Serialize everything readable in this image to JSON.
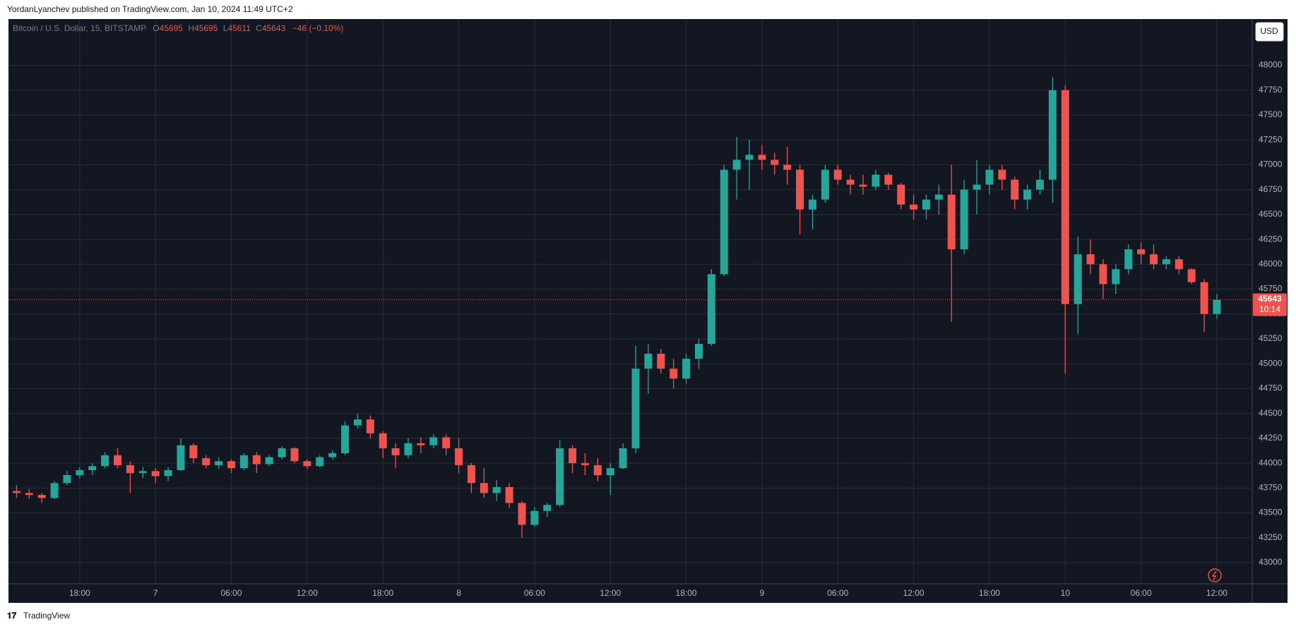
{
  "page": {
    "byline": "YordanLyanchev published on TradingView.com, Jan 10, 2024 11:49 UTC+2",
    "footer": "TradingView"
  },
  "legend": {
    "symbol": "Bitcoin / U.S. Dollar, 15, BITSTAMP",
    "o_label": "O",
    "o": "45695",
    "h_label": "H",
    "h": "45695",
    "l_label": "L",
    "l": "45611",
    "c_label": "C",
    "c": "45643",
    "change": "−46 (−0.10%)"
  },
  "chart_data": {
    "type": "candlestick",
    "currency": "USD",
    "categories": [
      null,
      null,
      null,
      null,
      null,
      "18:00",
      null,
      null,
      null,
      null,
      null,
      "7",
      null,
      null,
      null,
      null,
      null,
      "06:00",
      null,
      null,
      null,
      null,
      null,
      "12:00",
      null,
      null,
      null,
      null,
      null,
      "18:00",
      null,
      null,
      null,
      null,
      null,
      "8",
      null,
      null,
      null,
      null,
      null,
      "06:00",
      null,
      null,
      null,
      null,
      null,
      "12:00",
      null,
      null,
      null,
      null,
      null,
      "18:00",
      null,
      null,
      null,
      null,
      null,
      "9",
      null,
      null,
      null,
      null,
      null,
      "06:00",
      null,
      null,
      null,
      null,
      null,
      "12:00",
      null,
      null,
      null,
      null,
      null,
      "18:00",
      null,
      null,
      null,
      null,
      null,
      "10",
      null,
      null,
      null,
      null,
      null,
      "06:00",
      null,
      null,
      null,
      null,
      null,
      "12:00"
    ],
    "open": [
      43720,
      43700,
      43680,
      43650,
      43800,
      43880,
      43930,
      43970,
      44080,
      43980,
      43900,
      43920,
      43870,
      43930,
      44180,
      44050,
      43980,
      44020,
      43950,
      44080,
      43990,
      44060,
      44150,
      44020,
      43970,
      44060,
      44100,
      44380,
      44440,
      44300,
      44150,
      44080,
      44200,
      44180,
      44260,
      44150,
      43980,
      43800,
      43700,
      43760,
      43600,
      43380,
      43520,
      43580,
      44150,
      44000,
      43980,
      43880,
      43950,
      44150,
      44950,
      45100,
      44950,
      44850,
      45050,
      45200,
      45900,
      46950,
      47050,
      47100,
      47050,
      47000,
      46950,
      46550,
      46650,
      46950,
      46850,
      46800,
      46780,
      46900,
      46800,
      46600,
      46550,
      46650,
      46700,
      46150,
      46750,
      46800,
      46950,
      46850,
      46650,
      46750,
      46850,
      47750,
      45600,
      46100,
      46000,
      45800,
      45950,
      46150,
      46100,
      46000,
      46050,
      45950,
      45820,
      45500
    ],
    "high": [
      43780,
      43740,
      43700,
      43820,
      43920,
      43960,
      44000,
      44110,
      44150,
      44020,
      43960,
      43950,
      43960,
      44250,
      44200,
      44080,
      44060,
      44040,
      44100,
      44110,
      44080,
      44170,
      44160,
      44040,
      44080,
      44130,
      44420,
      44500,
      44480,
      44320,
      44200,
      44250,
      44260,
      44290,
      44290,
      44250,
      44000,
      43950,
      43830,
      43800,
      43620,
      43560,
      43600,
      44230,
      44180,
      44100,
      44050,
      44000,
      44200,
      45180,
      45200,
      45150,
      45050,
      45100,
      45250,
      45950,
      47000,
      47280,
      47250,
      47200,
      47120,
      47180,
      47000,
      46700,
      47000,
      47000,
      46900,
      46900,
      46950,
      46920,
      46820,
      46700,
      46700,
      46800,
      47000,
      46850,
      47050,
      47000,
      47000,
      46880,
      46800,
      46950,
      47880,
      47800,
      46280,
      46250,
      46050,
      46000,
      46200,
      46220,
      46200,
      46080,
      46080,
      45960,
      45850,
      45700
    ],
    "low": [
      43650,
      43640,
      43600,
      43640,
      43780,
      43850,
      43880,
      43950,
      43950,
      43700,
      43850,
      43800,
      43820,
      43920,
      44000,
      43950,
      43940,
      43900,
      43930,
      43900,
      43970,
      44040,
      44000,
      43940,
      43960,
      44040,
      44080,
      44350,
      44250,
      44050,
      43950,
      44050,
      44100,
      44150,
      44080,
      43900,
      43700,
      43650,
      43620,
      43550,
      43250,
      43360,
      43460,
      43560,
      43900,
      43880,
      43820,
      43680,
      43940,
      44100,
      44700,
      44900,
      44750,
      44800,
      44950,
      45180,
      45880,
      46650,
      46750,
      46950,
      46900,
      46800,
      46300,
      46350,
      46620,
      46800,
      46700,
      46700,
      46750,
      46750,
      46550,
      46450,
      46450,
      46500,
      45420,
      46100,
      46500,
      46700,
      46750,
      46550,
      46550,
      46700,
      46620,
      44900,
      45300,
      45900,
      45650,
      45700,
      45900,
      46000,
      45950,
      45950,
      45900,
      45800,
      45320,
      45450
    ],
    "close": [
      43700,
      43680,
      43650,
      43800,
      43880,
      43930,
      43970,
      44080,
      43980,
      43900,
      43920,
      43870,
      43930,
      44180,
      44050,
      43980,
      44020,
      43950,
      44080,
      43990,
      44060,
      44150,
      44020,
      43970,
      44060,
      44100,
      44380,
      44440,
      44300,
      44150,
      44080,
      44200,
      44180,
      44260,
      44150,
      43980,
      43800,
      43700,
      43760,
      43600,
      43380,
      43520,
      43580,
      44150,
      44000,
      43980,
      43880,
      43950,
      44150,
      44950,
      45100,
      44950,
      44850,
      45050,
      45200,
      45900,
      46950,
      47050,
      47100,
      47050,
      47000,
      46950,
      46550,
      46650,
      46950,
      46850,
      46800,
      46780,
      46900,
      46800,
      46600,
      46550,
      46650,
      46700,
      46150,
      46750,
      46800,
      46950,
      46850,
      46650,
      46750,
      46850,
      47750,
      45600,
      46100,
      46000,
      45800,
      45950,
      46150,
      46100,
      46000,
      46050,
      45950,
      45820,
      45500,
      45643
    ],
    "up_color": "#26a69a",
    "down_color": "#ef5350",
    "last_price": 45643,
    "countdown": "10:14",
    "ylim": [
      42787,
      48465
    ],
    "yticks": [
      43000,
      43250,
      43500,
      43750,
      44000,
      44250,
      44500,
      44750,
      45000,
      45250,
      45500,
      45750,
      46000,
      46250,
      46500,
      46750,
      47000,
      47250,
      47500,
      47750,
      48000
    ],
    "grid": true
  }
}
